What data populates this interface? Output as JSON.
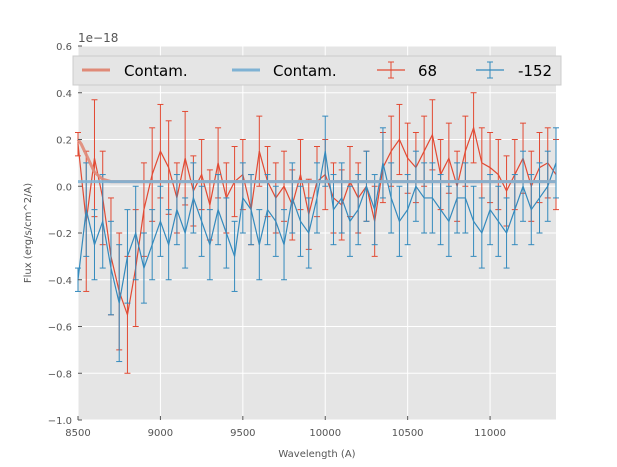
{
  "chart_data": {
    "type": "line",
    "xlabel": "Wavelength (A)",
    "ylabel": "Flux (erg/s/cm^2/A)",
    "y_offset_label": "1e−18",
    "xlim": [
      8500,
      11400
    ],
    "ylim": [
      -1.0,
      0.6
    ],
    "x_ticks": [
      8500,
      9000,
      9500,
      10000,
      10500,
      11000
    ],
    "x_tick_labels": [
      "8500",
      "9000",
      "9500",
      "10000",
      "10500",
      "11000"
    ],
    "y_ticks": [
      -1.0,
      -0.8,
      -0.6,
      -0.4,
      -0.2,
      0.0,
      0.2,
      0.4,
      0.6
    ],
    "y_tick_labels": [
      "−1.0",
      "−0.8",
      "−0.6",
      "−0.4",
      "−0.2",
      "0.0",
      "0.2",
      "0.4",
      "0.6"
    ],
    "grid": true,
    "legend_position": "top",
    "background": "#e5e5e5",
    "series": [
      {
        "name": "Contam.",
        "kind": "line",
        "color": "#e08a78",
        "x": [
          8500,
          8520,
          8540,
          8560,
          8580,
          8600,
          8650,
          8700,
          8800,
          9000,
          9500,
          10000,
          10500,
          11000,
          11400
        ],
        "values": [
          0.2,
          0.18,
          0.15,
          0.12,
          0.09,
          0.06,
          0.03,
          0.02,
          0.02,
          0.02,
          0.02,
          0.02,
          0.02,
          0.02,
          0.02
        ]
      },
      {
        "name": "Contam.",
        "kind": "line",
        "color": "#7fb2d4",
        "x": [
          8500,
          8600,
          8700,
          9000,
          9500,
          10000,
          10500,
          11000,
          11400
        ],
        "values": [
          0.02,
          0.02,
          0.02,
          0.02,
          0.02,
          0.02,
          0.02,
          0.02,
          0.02
        ]
      },
      {
        "name": "68",
        "kind": "errorbar",
        "color": "#e24a33",
        "x": [
          8500,
          8550,
          8600,
          8650,
          8700,
          8750,
          8800,
          8850,
          8900,
          8950,
          9000,
          9050,
          9100,
          9150,
          9200,
          9250,
          9300,
          9350,
          9400,
          9450,
          9500,
          9550,
          9600,
          9650,
          9700,
          9750,
          9800,
          9850,
          9900,
          9950,
          10000,
          10050,
          10100,
          10150,
          10200,
          10250,
          10300,
          10350,
          10400,
          10450,
          10500,
          10550,
          10600,
          10650,
          10700,
          10750,
          10800,
          10850,
          10900,
          10950,
          11000,
          11050,
          11100,
          11150,
          11200,
          11250,
          11300,
          11350,
          11400
        ],
        "values": [
          0.18,
          -0.15,
          0.12,
          -0.05,
          -0.3,
          -0.45,
          -0.55,
          -0.35,
          -0.1,
          0.05,
          0.15,
          0.08,
          -0.05,
          0.12,
          -0.02,
          0.05,
          -0.08,
          0.1,
          -0.05,
          0.02,
          0.05,
          -0.1,
          0.15,
          0.02,
          -0.05,
          0.0,
          -0.08,
          0.05,
          -0.12,
          0.02,
          0.05,
          -0.05,
          -0.08,
          0.02,
          -0.05,
          0.0,
          -0.15,
          0.08,
          0.15,
          0.2,
          0.12,
          0.08,
          0.15,
          0.22,
          0.05,
          0.12,
          0.0,
          0.15,
          0.25,
          0.1,
          0.08,
          0.05,
          -0.02,
          0.05,
          0.12,
          0.0,
          0.08,
          0.1,
          0.05
        ],
        "errors": [
          0.05,
          0.3,
          0.25,
          0.2,
          0.25,
          0.25,
          0.25,
          0.25,
          0.2,
          0.2,
          0.2,
          0.2,
          0.15,
          0.2,
          0.15,
          0.15,
          0.15,
          0.15,
          0.15,
          0.15,
          0.15,
          0.15,
          0.15,
          0.15,
          0.15,
          0.15,
          0.15,
          0.15,
          0.15,
          0.15,
          0.15,
          0.15,
          0.15,
          0.15,
          0.15,
          0.15,
          0.15,
          0.15,
          0.15,
          0.15,
          0.15,
          0.15,
          0.15,
          0.15,
          0.15,
          0.15,
          0.15,
          0.15,
          0.15,
          0.15,
          0.15,
          0.15,
          0.15,
          0.15,
          0.15,
          0.15,
          0.15,
          0.15,
          0.15
        ]
      },
      {
        "name": "-152",
        "kind": "errorbar",
        "color": "#348abd",
        "x": [
          8500,
          8550,
          8600,
          8650,
          8700,
          8750,
          8800,
          8850,
          8900,
          8950,
          9000,
          9050,
          9100,
          9150,
          9200,
          9250,
          9300,
          9350,
          9400,
          9450,
          9500,
          9550,
          9600,
          9650,
          9700,
          9750,
          9800,
          9850,
          9900,
          9950,
          10000,
          10050,
          10100,
          10150,
          10200,
          10250,
          10300,
          10350,
          10400,
          10450,
          10500,
          10550,
          10600,
          10650,
          10700,
          10750,
          10800,
          10850,
          10900,
          10950,
          11000,
          11050,
          11100,
          11150,
          11200,
          11250,
          11300,
          11350,
          11400
        ],
        "values": [
          -0.4,
          -0.1,
          -0.25,
          -0.15,
          -0.35,
          -0.5,
          -0.3,
          -0.2,
          -0.35,
          -0.25,
          -0.15,
          -0.25,
          -0.1,
          -0.2,
          -0.05,
          -0.15,
          -0.25,
          -0.1,
          -0.2,
          -0.3,
          -0.05,
          -0.1,
          -0.25,
          -0.1,
          -0.15,
          -0.25,
          -0.05,
          -0.15,
          -0.2,
          -0.05,
          0.15,
          -0.1,
          -0.05,
          -0.15,
          -0.1,
          0.0,
          -0.1,
          0.1,
          -0.05,
          -0.15,
          -0.1,
          0.0,
          -0.05,
          -0.05,
          -0.1,
          -0.15,
          -0.05,
          -0.05,
          -0.15,
          -0.2,
          -0.1,
          -0.15,
          -0.2,
          -0.1,
          0.0,
          -0.1,
          -0.05,
          0.0,
          0.1
        ],
        "errors": [
          0.05,
          0.2,
          0.15,
          0.2,
          0.2,
          0.25,
          0.2,
          0.2,
          0.15,
          0.15,
          0.15,
          0.15,
          0.15,
          0.15,
          0.15,
          0.15,
          0.15,
          0.15,
          0.15,
          0.15,
          0.15,
          0.15,
          0.15,
          0.15,
          0.15,
          0.15,
          0.15,
          0.15,
          0.15,
          0.15,
          0.15,
          0.15,
          0.15,
          0.15,
          0.15,
          0.15,
          0.15,
          0.15,
          0.15,
          0.15,
          0.15,
          0.15,
          0.15,
          0.15,
          0.15,
          0.15,
          0.15,
          0.15,
          0.15,
          0.15,
          0.15,
          0.15,
          0.15,
          0.15,
          0.15,
          0.15,
          0.15,
          0.15,
          0.15
        ]
      }
    ]
  }
}
